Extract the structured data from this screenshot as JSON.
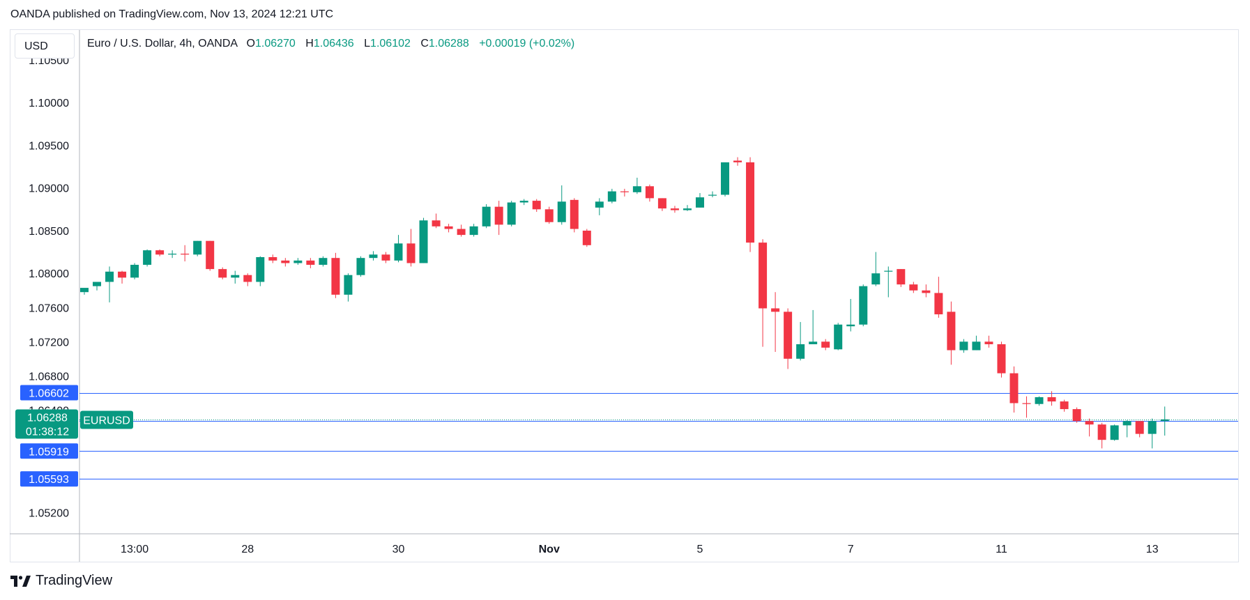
{
  "publisher": "OANDA published on TradingView.com, Nov 13, 2024 12:21 UTC",
  "currency": "USD",
  "brand": "TradingView",
  "legend": {
    "symbol": "Euro / U.S. Dollar, 4h, OANDA",
    "open_label": "O",
    "open": "1.06270",
    "high_label": "H",
    "high": "1.06436",
    "low_label": "L",
    "low": "1.06102",
    "close_label": "C",
    "close": "1.06288",
    "change": "+0.00019 (+0.02%)"
  },
  "colors": {
    "up": "#089981",
    "down": "#f23645",
    "level_line": "#2962ff",
    "level_label_bg": "#2962ff",
    "price_label_bg": "#089981",
    "grid": "#e0e3eb",
    "text": "#131722"
  },
  "chart_data": {
    "type": "candlestick",
    "ylim": [
      1.0495,
      1.1085
    ],
    "yticks": [
      "1.10500",
      "1.10000",
      "1.09500",
      "1.09000",
      "1.08500",
      "1.08000",
      "1.07600",
      "1.07200",
      "1.06800",
      "1.06400",
      "1.05200"
    ],
    "xticks": [
      {
        "label": "13:00",
        "index": 4
      },
      {
        "label": "28",
        "index": 13
      },
      {
        "label": "30",
        "index": 25
      },
      {
        "label": "Nov",
        "index": 37
      },
      {
        "label": "5",
        "index": 49
      },
      {
        "label": "7",
        "index": 61
      },
      {
        "label": "11",
        "index": 73
      },
      {
        "label": "13",
        "index": 85
      }
    ],
    "bold_xticks": [
      "Nov"
    ],
    "horizontal_levels": [
      "1.06602",
      "1.06274",
      "1.05919",
      "1.05593"
    ],
    "current_price": {
      "value": "1.06288",
      "symbol": "EURUSD",
      "countdown": "01:38:12"
    },
    "candles": [
      [
        1.0778,
        1.0783,
        1.0778,
        1.0775
      ],
      [
        1.0785,
        1.079,
        1.079,
        1.078
      ],
      [
        1.079,
        1.0802,
        1.0808,
        1.0766
      ],
      [
        1.0802,
        1.0795,
        1.0803,
        1.0788
      ],
      [
        1.0795,
        1.081,
        1.0812,
        1.0793
      ],
      [
        1.081,
        1.0827,
        1.0828,
        1.0808
      ],
      [
        1.0827,
        1.0822,
        1.0828,
        1.082
      ],
      [
        1.0822,
        1.0823,
        1.0827,
        1.0818
      ],
      [
        1.0823,
        1.0822,
        1.0833,
        1.0814
      ],
      [
        1.0822,
        1.0838,
        1.0838,
        1.082
      ],
      [
        1.0838,
        1.0805,
        1.0838,
        1.0803
      ],
      [
        1.0805,
        1.0795,
        1.0807,
        1.0793
      ],
      [
        1.0795,
        1.0798,
        1.0803,
        1.0788
      ],
      [
        1.0798,
        1.079,
        1.08,
        1.0785
      ],
      [
        1.079,
        1.0819,
        1.082,
        1.0785
      ],
      [
        1.0819,
        1.0815,
        1.0822,
        1.0812
      ],
      [
        1.0815,
        1.0812,
        1.0818,
        1.0808
      ],
      [
        1.0812,
        1.0815,
        1.0818,
        1.081
      ],
      [
        1.0815,
        1.081,
        1.0818,
        1.0806
      ],
      [
        1.081,
        1.0818,
        1.082,
        1.0808
      ],
      [
        1.0818,
        1.0775,
        1.0824,
        1.0771
      ],
      [
        1.0775,
        1.0798,
        1.08,
        1.0767
      ],
      [
        1.0798,
        1.0818,
        1.082,
        1.0796
      ],
      [
        1.0818,
        1.0822,
        1.0826,
        1.0815
      ],
      [
        1.0822,
        1.0815,
        1.0825,
        1.0812
      ],
      [
        1.0815,
        1.0835,
        1.0845,
        1.0813
      ],
      [
        1.0835,
        1.0812,
        1.0852,
        1.0808
      ],
      [
        1.0812,
        1.0862,
        1.0865,
        1.0812
      ],
      [
        1.0862,
        1.0855,
        1.087,
        1.0853
      ],
      [
        1.0855,
        1.0852,
        1.0858,
        1.0848
      ],
      [
        1.0852,
        1.0845,
        1.0857,
        1.0843
      ],
      [
        1.0845,
        1.0855,
        1.0858,
        1.0843
      ],
      [
        1.0855,
        1.0878,
        1.0881,
        1.0853
      ],
      [
        1.0878,
        1.0857,
        1.0885,
        1.0845
      ],
      [
        1.0857,
        1.0883,
        1.0885,
        1.0855
      ],
      [
        1.0883,
        1.0885,
        1.0887,
        1.088
      ],
      [
        1.0885,
        1.0875,
        1.0887,
        1.0872
      ],
      [
        1.0875,
        1.086,
        1.0878,
        1.0858
      ],
      [
        1.086,
        1.0884,
        1.0903,
        1.0857
      ],
      [
        1.0886,
        1.0852,
        1.0888,
        1.0848
      ],
      [
        1.085,
        1.0833,
        1.0852,
        1.0831
      ],
      [
        1.0877,
        1.0884,
        1.0888,
        1.0868
      ],
      [
        1.0884,
        1.0896,
        1.0899,
        1.0882
      ],
      [
        1.0896,
        1.0895,
        1.0899,
        1.089
      ],
      [
        1.0895,
        1.0902,
        1.0912,
        1.0893
      ],
      [
        1.0902,
        1.0888,
        1.0904,
        1.0884
      ],
      [
        1.0888,
        1.0876,
        1.0888,
        1.0873
      ],
      [
        1.0876,
        1.0874,
        1.0879,
        1.0871
      ],
      [
        1.0874,
        1.0876,
        1.088,
        1.0873
      ],
      [
        1.0877,
        1.0889,
        1.0894,
        1.0877
      ],
      [
        1.0891,
        1.0892,
        1.0896,
        1.0889
      ],
      [
        1.0892,
        1.093,
        1.093,
        1.089
      ],
      [
        1.0932,
        1.093,
        1.0936,
        1.0926
      ],
      [
        1.093,
        1.0836,
        1.0936,
        1.0825
      ],
      [
        1.0836,
        1.0759,
        1.084,
        1.0714
      ],
      [
        1.0759,
        1.0755,
        1.0778,
        1.0708
      ],
      [
        1.0755,
        1.07,
        1.0759,
        1.0688
      ],
      [
        1.07,
        1.0717,
        1.0743,
        1.0698
      ],
      [
        1.0717,
        1.072,
        1.0757,
        1.0718
      ],
      [
        1.072,
        1.0713,
        1.0723,
        1.071
      ],
      [
        1.0711,
        1.074,
        1.0742,
        1.071
      ],
      [
        1.0738,
        1.074,
        1.077,
        1.0732
      ],
      [
        1.074,
        1.0785,
        1.0787,
        1.0738
      ],
      [
        1.0787,
        1.08,
        1.0825,
        1.0785
      ],
      [
        1.0802,
        1.0803,
        1.0808,
        1.0772
      ],
      [
        1.0805,
        1.0787,
        1.0805,
        1.0784
      ],
      [
        1.0787,
        1.078,
        1.079,
        1.0777
      ],
      [
        1.078,
        1.0777,
        1.0787,
        1.0772
      ],
      [
        1.0777,
        1.0752,
        1.0796,
        1.0748
      ],
      [
        1.0755,
        1.071,
        1.0767,
        1.0693
      ],
      [
        1.071,
        1.072,
        1.0723,
        1.0707
      ],
      [
        1.071,
        1.072,
        1.0727,
        1.071
      ],
      [
        1.072,
        1.0717,
        1.0727,
        1.0713
      ],
      [
        1.0717,
        1.0683,
        1.072,
        1.0678
      ],
      [
        1.0683,
        1.0648,
        1.0691,
        1.0637
      ],
      [
        1.0648,
        1.0647,
        1.0656,
        1.0631
      ],
      [
        1.0647,
        1.0655,
        1.0656,
        1.0645
      ],
      [
        1.0655,
        1.065,
        1.0662,
        1.0645
      ],
      [
        1.065,
        1.0641,
        1.0652,
        1.0638
      ],
      [
        1.0641,
        1.0627,
        1.0643,
        1.0625
      ],
      [
        1.0627,
        1.0623,
        1.063,
        1.0609
      ],
      [
        1.0623,
        1.0605,
        1.0625,
        1.0595
      ],
      [
        1.0605,
        1.0622,
        1.0623,
        1.0604
      ],
      [
        1.0622,
        1.0627,
        1.0628,
        1.0608
      ],
      [
        1.0627,
        1.0612,
        1.0627,
        1.0608
      ],
      [
        1.0612,
        1.0627,
        1.063,
        1.0595
      ],
      [
        1.0627,
        1.0629,
        1.0644,
        1.061
      ]
    ]
  }
}
